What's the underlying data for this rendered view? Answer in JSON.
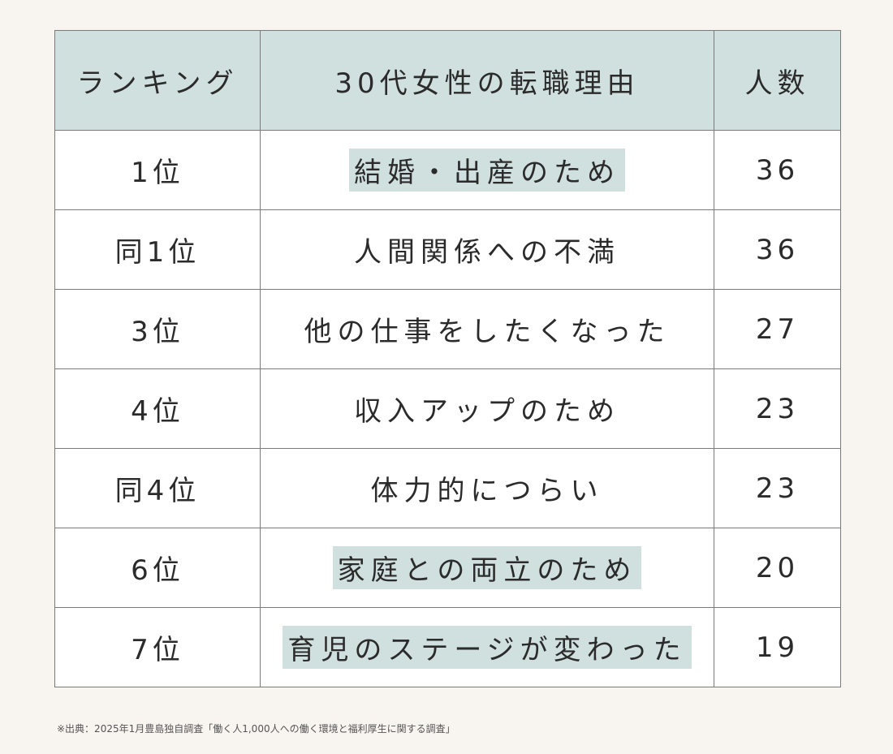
{
  "table": {
    "headers": {
      "rank": "ランキング",
      "reason": "30代女性の転職理由",
      "count": "人数"
    },
    "rows": [
      {
        "rank": "1位",
        "reason": "結婚・出産のため",
        "count": "36",
        "highlighted": true
      },
      {
        "rank": "同1位",
        "reason": "人間関係への不満",
        "count": "36",
        "highlighted": false
      },
      {
        "rank": "3位",
        "reason": "他の仕事をしたくなった",
        "count": "27",
        "highlighted": false
      },
      {
        "rank": "4位",
        "reason": "収入アップのため",
        "count": "23",
        "highlighted": false
      },
      {
        "rank": "同4位",
        "reason": "体力的につらい",
        "count": "23",
        "highlighted": false
      },
      {
        "rank": "6位",
        "reason": "家庭との両立のため",
        "count": "20",
        "highlighted": true
      },
      {
        "rank": "7位",
        "reason": "育児のステージが変わった",
        "count": "19",
        "highlighted": true
      }
    ]
  },
  "footnote": "※出典：2025年1月豊島独自調査「働く人1,000人への働く環境と福利厚生に関する調査」",
  "colors": {
    "background": "#f8f4f0",
    "header_fill": "#cfe0df",
    "highlight_fill": "#cfe0df",
    "border": "#7a7a7a",
    "text": "#2b2b2b"
  }
}
